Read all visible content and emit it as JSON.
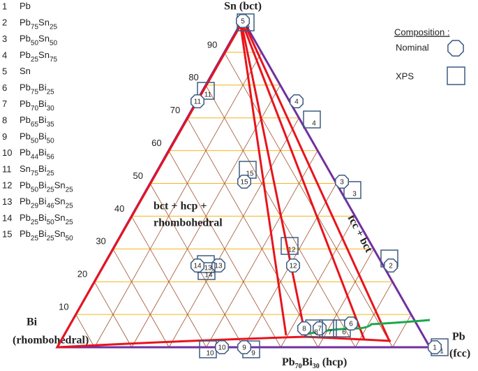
{
  "legend": [
    {
      "number": "1",
      "formula": [
        {
          "el": "Pb"
        }
      ]
    },
    {
      "number": "2",
      "formula": [
        {
          "el": "Pb",
          "sub": "75"
        },
        {
          "el": "Sn",
          "sub": "25"
        }
      ]
    },
    {
      "number": "3",
      "formula": [
        {
          "el": "Pb",
          "sub": "50"
        },
        {
          "el": "Sn",
          "sub": "50"
        }
      ]
    },
    {
      "number": "4",
      "formula": [
        {
          "el": "Pb",
          "sub": "25"
        },
        {
          "el": "Sn",
          "sub": "75"
        }
      ]
    },
    {
      "number": "5",
      "formula": [
        {
          "el": "Sn"
        }
      ]
    },
    {
      "number": "6",
      "formula": [
        {
          "el": "Pb",
          "sub": "75"
        },
        {
          "el": "Bi",
          "sub": "25"
        }
      ]
    },
    {
      "number": "7",
      "formula": [
        {
          "el": "Pb",
          "sub": "70"
        },
        {
          "el": "Bi",
          "sub": "30"
        }
      ]
    },
    {
      "number": "8",
      "formula": [
        {
          "el": "Pb",
          "sub": "65"
        },
        {
          "el": "Bi",
          "sub": "35"
        }
      ]
    },
    {
      "number": "9",
      "formula": [
        {
          "el": "Pb",
          "sub": "50"
        },
        {
          "el": "Bi",
          "sub": "50"
        }
      ]
    },
    {
      "number": "10",
      "formula": [
        {
          "el": "Pb",
          "sub": "44"
        },
        {
          "el": "Bi",
          "sub": "56"
        }
      ]
    },
    {
      "number": "11",
      "formula": [
        {
          "el": "Sn",
          "sub": "75"
        },
        {
          "el": "Bi",
          "sub": "25"
        }
      ]
    },
    {
      "number": "12",
      "formula": [
        {
          "el": "Pb",
          "sub": "50"
        },
        {
          "el": "Bi",
          "sub": "25"
        },
        {
          "el": "Sn",
          "sub": "25"
        }
      ]
    },
    {
      "number": "13",
      "formula": [
        {
          "el": "Pb",
          "sub": "29"
        },
        {
          "el": "Bi",
          "sub": "46"
        },
        {
          "el": "Sn",
          "sub": "25"
        }
      ]
    },
    {
      "number": "14",
      "formula": [
        {
          "el": "Pb",
          "sub": "25"
        },
        {
          "el": "Bi",
          "sub": "50"
        },
        {
          "el": "Sn",
          "sub": "25"
        }
      ]
    },
    {
      "number": "15",
      "formula": [
        {
          "el": "Pb",
          "sub": "25"
        },
        {
          "el": "Bi",
          "sub": "25"
        },
        {
          "el": "Sn",
          "sub": "50"
        }
      ]
    }
  ],
  "axis_labels": [
    "10",
    "20",
    "30",
    "40",
    "50",
    "60",
    "70",
    "80",
    "90"
  ],
  "vertices": {
    "top": "Sn (bct)",
    "left": "Bi",
    "left_phase": "(rhombohedral)",
    "right": "Pb",
    "right_phase": "(fcc)"
  },
  "bottom_label": {
    "parts": [
      {
        "el": "Pb",
        "sub": "70"
      },
      {
        "el": "Bi",
        "sub": "30"
      }
    ],
    "phase": " (hcp)"
  },
  "regions": {
    "left_1": "bct + hcp +",
    "left_2": "rhombohedral",
    "right": "fcc + bct"
  },
  "composition_key": {
    "title": "Composition :",
    "nominal": "Nominal",
    "xps": "XPS"
  }
}
